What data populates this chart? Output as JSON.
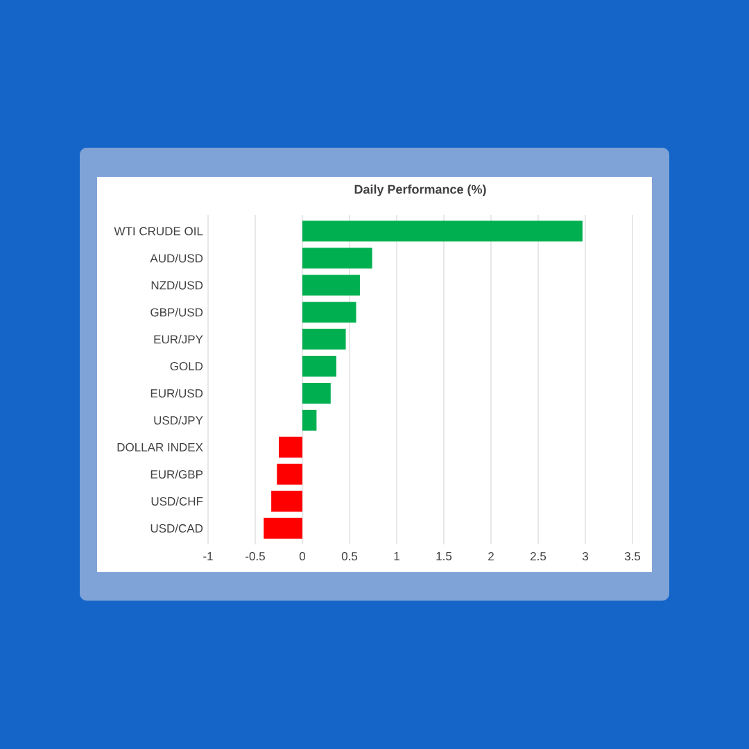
{
  "chart_data": {
    "type": "bar",
    "orientation": "horizontal",
    "title": "Daily Performance (%)",
    "categories": [
      "WTI CRUDE OIL",
      "AUD/USD",
      "NZD/USD",
      "GBP/USD",
      "EUR/JPY",
      "GOLD",
      "EUR/USD",
      "USD/JPY",
      "DOLLAR INDEX",
      "EUR/GBP",
      "USD/CHF",
      "USD/CAD"
    ],
    "values": [
      2.97,
      0.74,
      0.61,
      0.57,
      0.46,
      0.36,
      0.3,
      0.15,
      -0.25,
      -0.27,
      -0.33,
      -0.41
    ],
    "colors": [
      "#00b050",
      "#00b050",
      "#00b050",
      "#00b050",
      "#00b050",
      "#00b050",
      "#00b050",
      "#00b050",
      "#ff0000",
      "#ff0000",
      "#ff0000",
      "#ff0000"
    ],
    "xlim": [
      -1,
      3.5
    ],
    "xticks": [
      -1,
      -0.5,
      0,
      0.5,
      1,
      1.5,
      2,
      2.5,
      3,
      3.5
    ],
    "grid": "x"
  }
}
